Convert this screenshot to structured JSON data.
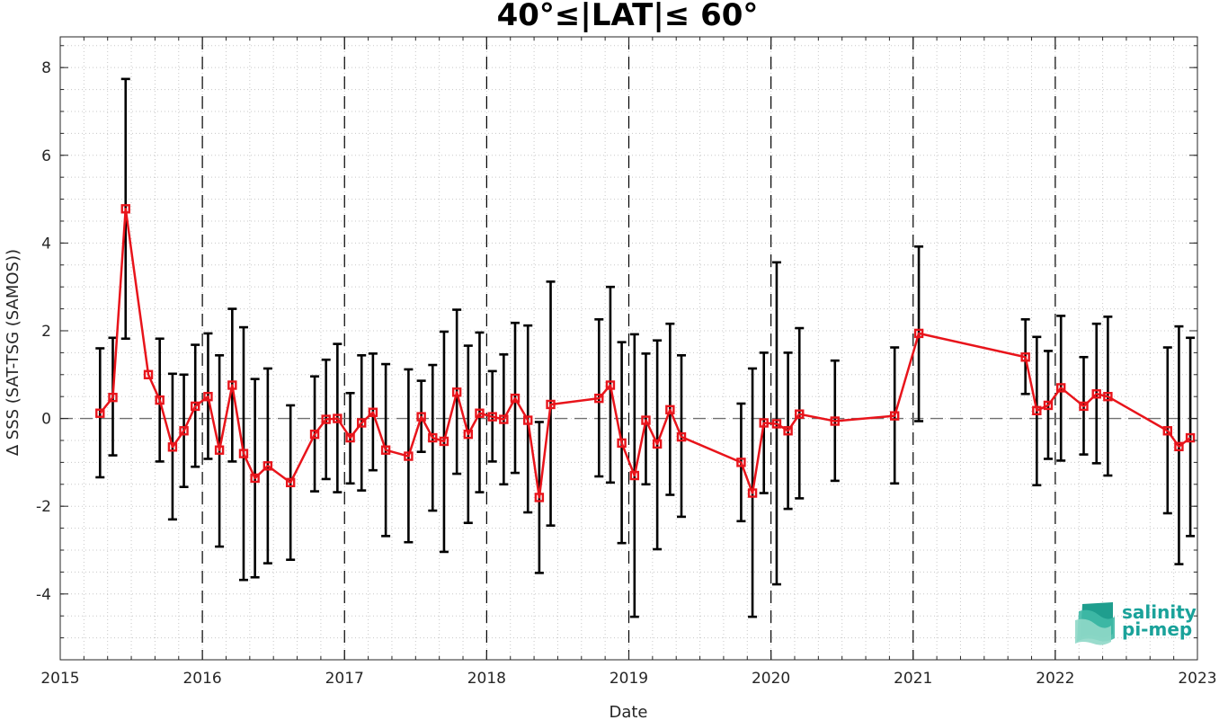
{
  "chart_data": {
    "type": "line",
    "title": "40°≤|LAT|≤ 60°",
    "xlabel": "Date",
    "ylabel": "∆ SSS (SAT-TSG (SAMOS))",
    "xlim": [
      2015.0,
      2023.0
    ],
    "ylim": [
      -5.5,
      8.7
    ],
    "x_ticks": [
      2015,
      2016,
      2017,
      2018,
      2019,
      2020,
      2021,
      2022,
      2023
    ],
    "y_ticks": [
      -4,
      -2,
      0,
      2,
      4,
      6,
      8
    ],
    "grid": "dotted-minor",
    "year_separators": [
      2016,
      2017,
      2018,
      2019,
      2020,
      2021,
      2022
    ],
    "zero_line": 0,
    "line_color": "#e8141b",
    "errorbar_color": "#000000",
    "x": [
      2015.28,
      2015.37,
      2015.46,
      2015.62,
      2015.7,
      2015.79,
      2015.87,
      2015.95,
      2016.04,
      2016.12,
      2016.21,
      2016.29,
      2016.37,
      2016.46,
      2016.62,
      2016.79,
      2016.87,
      2016.95,
      2017.04,
      2017.12,
      2017.2,
      2017.29,
      2017.45,
      2017.54,
      2017.62,
      2017.7,
      2017.79,
      2017.87,
      2017.95,
      2018.04,
      2018.12,
      2018.2,
      2018.29,
      2018.37,
      2018.45,
      2018.79,
      2018.87,
      2018.95,
      2019.04,
      2019.12,
      2019.2,
      2019.29,
      2019.37,
      2019.79,
      2019.87,
      2019.95,
      2020.04,
      2020.12,
      2020.2,
      2020.45,
      2020.87,
      2021.04,
      2021.79,
      2021.87,
      2021.95,
      2022.04,
      2022.2,
      2022.29,
      2022.37,
      2022.79,
      2022.87,
      2022.95
    ],
    "values": [
      0.12,
      0.48,
      4.78,
      1.0,
      0.42,
      -0.65,
      -0.28,
      0.28,
      0.5,
      -0.72,
      0.76,
      -0.8,
      -1.36,
      -1.08,
      -1.46,
      -0.36,
      -0.02,
      0.0,
      -0.44,
      -0.1,
      0.14,
      -0.72,
      -0.86,
      0.04,
      -0.44,
      -0.52,
      0.6,
      -0.36,
      0.12,
      0.04,
      -0.02,
      0.46,
      -0.04,
      -1.8,
      0.32,
      0.46,
      0.76,
      -0.56,
      -1.3,
      -0.04,
      -0.58,
      0.2,
      -0.42,
      -1.0,
      -1.7,
      -0.1,
      -0.12,
      -0.28,
      0.1,
      -0.06,
      0.06,
      1.94,
      1.4,
      0.18,
      0.3,
      0.7,
      0.28,
      0.56,
      0.5,
      -0.28,
      -0.64,
      -0.44
    ],
    "err_low": [
      -1.34,
      -0.84,
      1.82,
      null,
      -0.98,
      -2.3,
      -1.56,
      -1.1,
      -0.92,
      -2.92,
      -0.98,
      -3.68,
      -3.62,
      -3.3,
      -3.22,
      -1.66,
      -1.38,
      -1.68,
      -1.48,
      -1.64,
      -1.18,
      -2.68,
      -2.82,
      -0.76,
      -2.1,
      -3.04,
      -1.26,
      -2.38,
      -1.68,
      -0.98,
      -1.5,
      -1.24,
      -2.14,
      -3.52,
      -2.44,
      -1.32,
      -1.46,
      -2.84,
      -4.52,
      -1.5,
      -2.98,
      -1.74,
      -2.24,
      -2.34,
      -4.52,
      -1.7,
      -3.78,
      -2.06,
      -1.82,
      -1.42,
      -1.48,
      -0.06,
      0.56,
      -1.52,
      -0.92,
      -0.96,
      -0.82,
      -1.02,
      -1.3,
      -2.16,
      -3.32,
      -2.68
    ],
    "err_high": [
      1.6,
      1.84,
      7.74,
      null,
      1.82,
      1.02,
      1.0,
      1.68,
      1.94,
      1.44,
      2.5,
      2.08,
      0.9,
      1.14,
      0.3,
      0.96,
      1.34,
      1.7,
      0.58,
      1.44,
      1.48,
      1.24,
      1.12,
      0.86,
      1.22,
      1.98,
      2.48,
      1.66,
      1.96,
      1.08,
      1.46,
      2.18,
      2.12,
      -0.08,
      3.12,
      2.26,
      3.0,
      1.74,
      1.92,
      1.48,
      1.78,
      2.16,
      1.44,
      0.34,
      1.14,
      1.5,
      3.56,
      1.5,
      2.06,
      1.32,
      1.62,
      3.92,
      2.26,
      1.86,
      1.54,
      2.34,
      1.4,
      2.16,
      2.32,
      1.62,
      2.1,
      1.84
    ]
  },
  "logo": {
    "line1": "salinity",
    "line2": "pi-mep",
    "color": "#1aa29a"
  }
}
